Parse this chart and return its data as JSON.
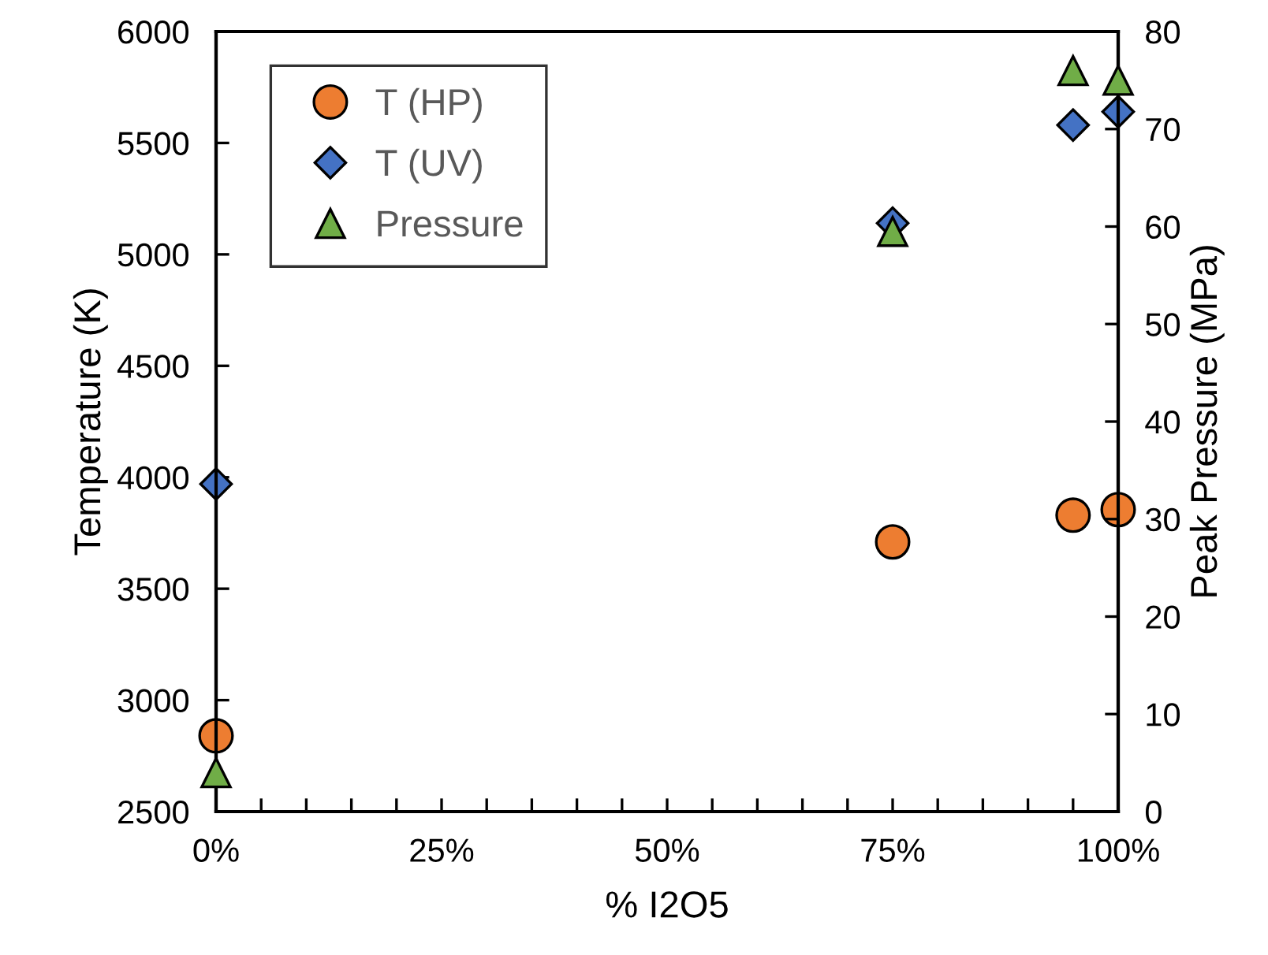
{
  "chart_data": {
    "type": "scatter",
    "xlabel": "% I2O5",
    "ylabel": "Temperature (K)",
    "y2label": "Peak Pressure (MPa)",
    "xlim": [
      0,
      100
    ],
    "xticks": [
      {
        "value": 0,
        "label": "0%"
      },
      {
        "value": 5,
        "label": null
      },
      {
        "value": 10,
        "label": null
      },
      {
        "value": 15,
        "label": null
      },
      {
        "value": 20,
        "label": null
      },
      {
        "value": 25,
        "label": "25%"
      },
      {
        "value": 30,
        "label": null
      },
      {
        "value": 35,
        "label": null
      },
      {
        "value": 40,
        "label": null
      },
      {
        "value": 45,
        "label": null
      },
      {
        "value": 50,
        "label": "50%"
      },
      {
        "value": 55,
        "label": null
      },
      {
        "value": 60,
        "label": null
      },
      {
        "value": 65,
        "label": null
      },
      {
        "value": 70,
        "label": null
      },
      {
        "value": 75,
        "label": "75%"
      },
      {
        "value": 80,
        "label": null
      },
      {
        "value": 85,
        "label": null
      },
      {
        "value": 90,
        "label": null
      },
      {
        "value": 95,
        "label": null
      },
      {
        "value": 100,
        "label": "100%"
      }
    ],
    "ylim": [
      2500,
      6000
    ],
    "yticks": [
      2500,
      3000,
      3500,
      4000,
      4500,
      5000,
      5500,
      6000
    ],
    "y2lim": [
      0,
      80
    ],
    "y2ticks": [
      0,
      10,
      20,
      30,
      40,
      50,
      60,
      70,
      80
    ],
    "grid": false,
    "legend": "top left",
    "series": [
      {
        "name": "T (HP)",
        "color": "#ed7d31",
        "marker": "circle",
        "x": [
          0,
          75,
          95,
          100
        ],
        "values": [
          2840,
          3710,
          3830,
          3855
        ]
      },
      {
        "name": "T (UV)",
        "color": "#4472c4",
        "marker": "diamond",
        "x": [
          0,
          75,
          95,
          100
        ],
        "values": [
          3970,
          5140,
          5580,
          5640
        ]
      },
      {
        "name": "Pressure",
        "color": "#70ad47",
        "marker": "triangle",
        "axis": "y2",
        "x": [
          0,
          75,
          95,
          100
        ],
        "values": [
          4,
          59.5,
          76,
          75
        ]
      }
    ]
  }
}
